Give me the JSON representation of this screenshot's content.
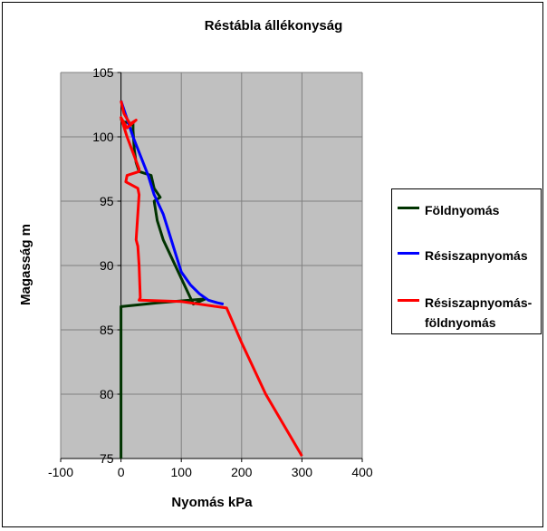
{
  "chart_data": {
    "type": "line",
    "title": "Réstábla állékonyság",
    "xlabel": "Nyomás kPa",
    "ylabel": "Magasság m",
    "xlim": [
      -100,
      400
    ],
    "ylim": [
      75,
      105
    ],
    "xticks": [
      "-100",
      "0",
      "100",
      "200",
      "300",
      "400"
    ],
    "yticks": [
      "75",
      "80",
      "85",
      "90",
      "95",
      "100",
      "105"
    ],
    "grid": true,
    "legend_position": "right",
    "series": [
      {
        "name": "Földnyomás",
        "color": "#003300",
        "x": [
          0,
          2,
          20,
          20,
          22,
          25,
          30,
          50,
          55,
          65,
          55,
          60,
          70,
          80,
          100,
          120,
          140,
          60,
          0,
          0,
          0
        ],
        "y": [
          101.4,
          101.2,
          101.0,
          100.5,
          99.0,
          98.0,
          97.3,
          97.0,
          96.0,
          95.3,
          95.0,
          93.5,
          92.0,
          91.0,
          89.0,
          87.0,
          87.4,
          87.1,
          86.8,
          86.6,
          75
        ]
      },
      {
        "name": "Résiszapnyomás",
        "color": "#0000ff",
        "x": [
          0,
          20,
          45,
          55,
          60,
          70,
          80,
          90,
          100,
          115,
          130,
          145,
          160,
          170
        ],
        "y": [
          102.8,
          100.0,
          97.0,
          95.5,
          95.0,
          94.0,
          92.5,
          91.0,
          89.5,
          88.5,
          87.8,
          87.3,
          87.1,
          87.0
        ]
      },
      {
        "name": "Résiszapnyomás-\nföldnyomás",
        "color": "#ff0000",
        "x": [
          0,
          5,
          15,
          25,
          10,
          0,
          10,
          30,
          30,
          10,
          8,
          28,
          30,
          25,
          28,
          30,
          32,
          30,
          100,
          175,
          200,
          240,
          300
        ],
        "y": [
          102.8,
          101.8,
          101.0,
          101.3,
          100.7,
          101.5,
          100.0,
          97.5,
          97.3,
          97.0,
          96.5,
          96.0,
          95.5,
          92.0,
          91.5,
          90.0,
          87.5,
          87.3,
          87.2,
          86.7,
          84.0,
          80.0,
          75.2
        ]
      }
    ]
  }
}
